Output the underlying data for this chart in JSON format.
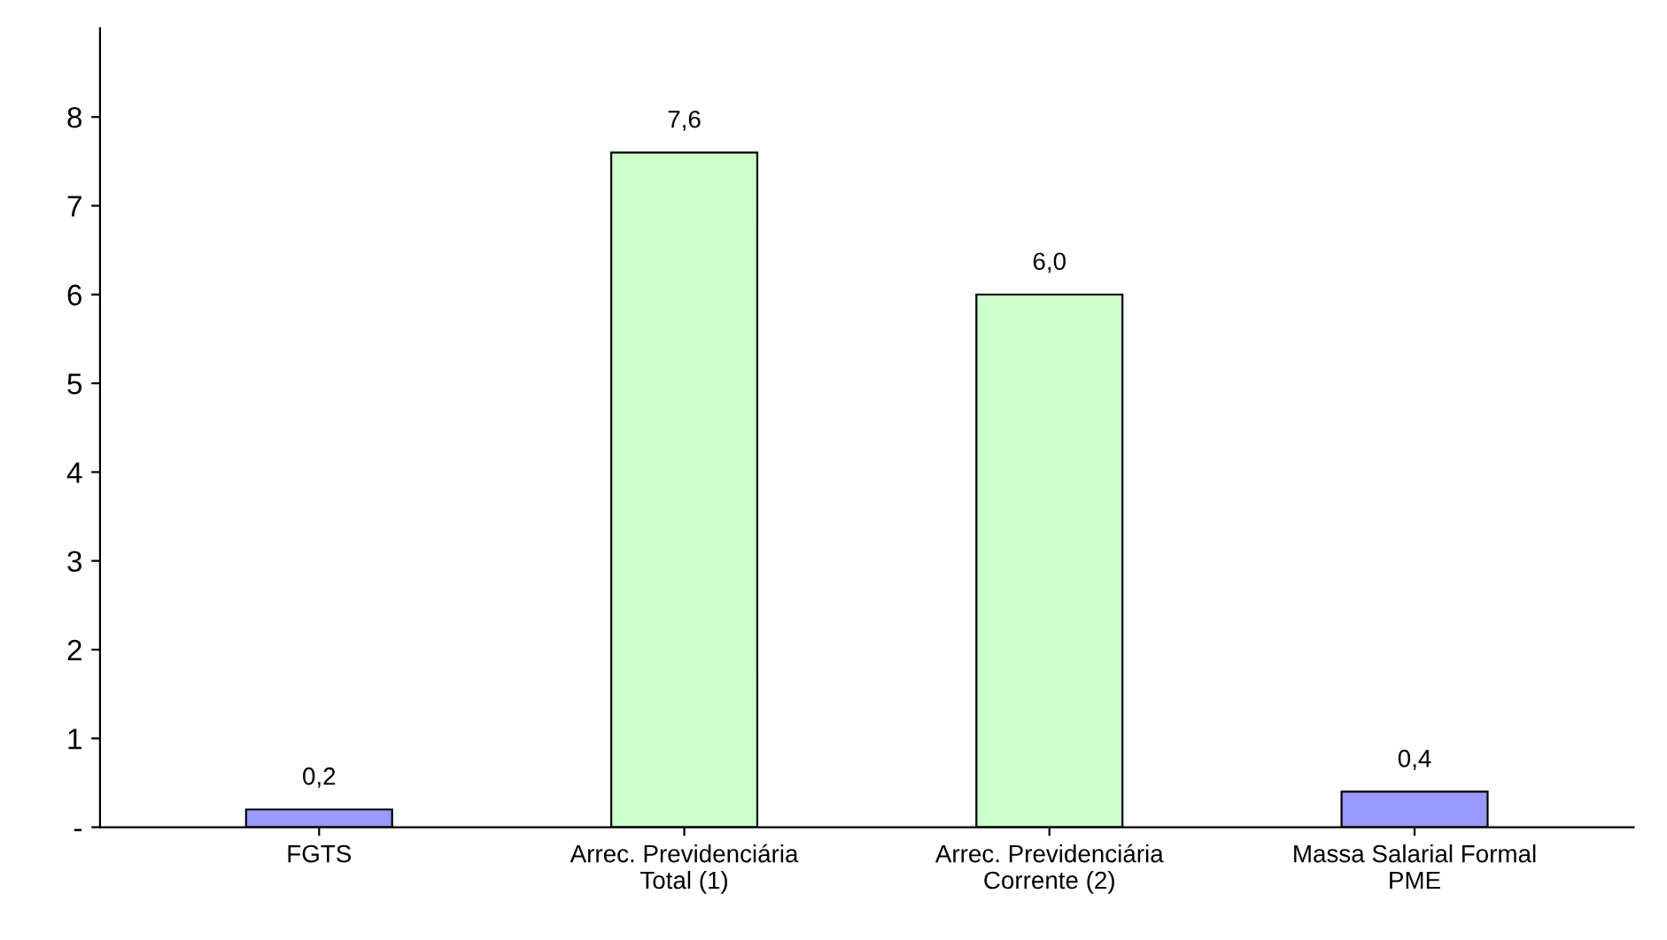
{
  "chart_data": {
    "type": "bar",
    "categories": [
      "FGTS",
      "Arrec. Previdenciária\nTotal (1)",
      "Arrec. Previdenciária\nCorrente (2)",
      "Massa Salarial Formal\nPME"
    ],
    "values": [
      0.2,
      7.6,
      6.0,
      0.4
    ],
    "colors": [
      "#9999ff",
      "#ccffcc",
      "#ccffcc",
      "#9999ff"
    ],
    "value_labels": [
      "0,2",
      "7,6",
      "6,0",
      "0,4"
    ],
    "ylim": [
      0,
      9
    ],
    "yticks": [
      {
        "value": 0,
        "label": "-"
      },
      1,
      2,
      3,
      4,
      5,
      6,
      7,
      8
    ],
    "grid": false
  }
}
